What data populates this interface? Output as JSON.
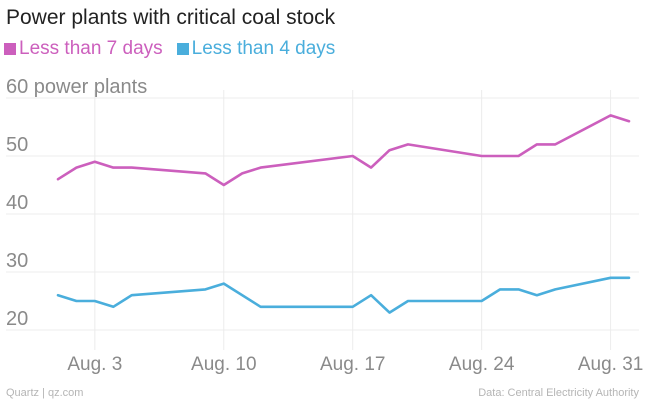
{
  "chart_data": {
    "type": "line",
    "title": "Power plants with critical coal stock",
    "xlabel": "",
    "ylabel": "power plants",
    "ylim": [
      20,
      60
    ],
    "yticks": [
      20,
      30,
      40,
      50,
      60
    ],
    "ytick_labels": [
      "20",
      "30",
      "40",
      "50",
      "60 power plants"
    ],
    "x": [
      1,
      2,
      3,
      4,
      5,
      6,
      7,
      8,
      9,
      10,
      11,
      12,
      13,
      14,
      15,
      16,
      17,
      18,
      19,
      20,
      21,
      22,
      23,
      24,
      25,
      26,
      27,
      28,
      29,
      30,
      31,
      32
    ],
    "xlim": [
      1,
      32
    ],
    "xticks": [
      {
        "value": 3,
        "label": "Aug. 3"
      },
      {
        "value": 10,
        "label": "Aug. 10"
      },
      {
        "value": 17,
        "label": "Aug. 17"
      },
      {
        "value": 24,
        "label": "Aug. 24"
      },
      {
        "value": 31,
        "label": "Aug. 31"
      }
    ],
    "grid": true,
    "series": [
      {
        "name": "Less than 7 days",
        "color": "#cc5fbd",
        "points": [
          [
            1,
            46
          ],
          [
            2,
            48
          ],
          [
            3,
            49
          ],
          [
            4,
            48
          ],
          [
            5,
            48
          ],
          [
            9,
            47
          ],
          [
            9,
            47
          ],
          [
            10,
            45
          ],
          [
            11,
            47
          ],
          [
            12,
            48
          ],
          [
            17,
            50
          ],
          [
            18,
            48
          ],
          [
            19,
            51
          ],
          [
            20,
            52
          ],
          [
            24,
            50
          ],
          [
            26,
            50
          ],
          [
            27,
            52
          ],
          [
            28,
            52
          ],
          [
            31,
            57
          ],
          [
            32,
            56
          ]
        ]
      },
      {
        "name": "Less than 4 days",
        "color": "#4aaedc",
        "points": [
          [
            1,
            26
          ],
          [
            2,
            25
          ],
          [
            3,
            25
          ],
          [
            4,
            24
          ],
          [
            5,
            26
          ],
          [
            9,
            27
          ],
          [
            10,
            28
          ],
          [
            12,
            24
          ],
          [
            17,
            24
          ],
          [
            18,
            26
          ],
          [
            19,
            23
          ],
          [
            20,
            25
          ],
          [
            24,
            25
          ],
          [
            25,
            27
          ],
          [
            26,
            27
          ],
          [
            27,
            26
          ],
          [
            28,
            27
          ],
          [
            31,
            29
          ],
          [
            32,
            29
          ]
        ]
      }
    ]
  },
  "footer": {
    "source_left": "Quartz | qz.com",
    "source_right": "Data: Central Electricity Authority"
  }
}
